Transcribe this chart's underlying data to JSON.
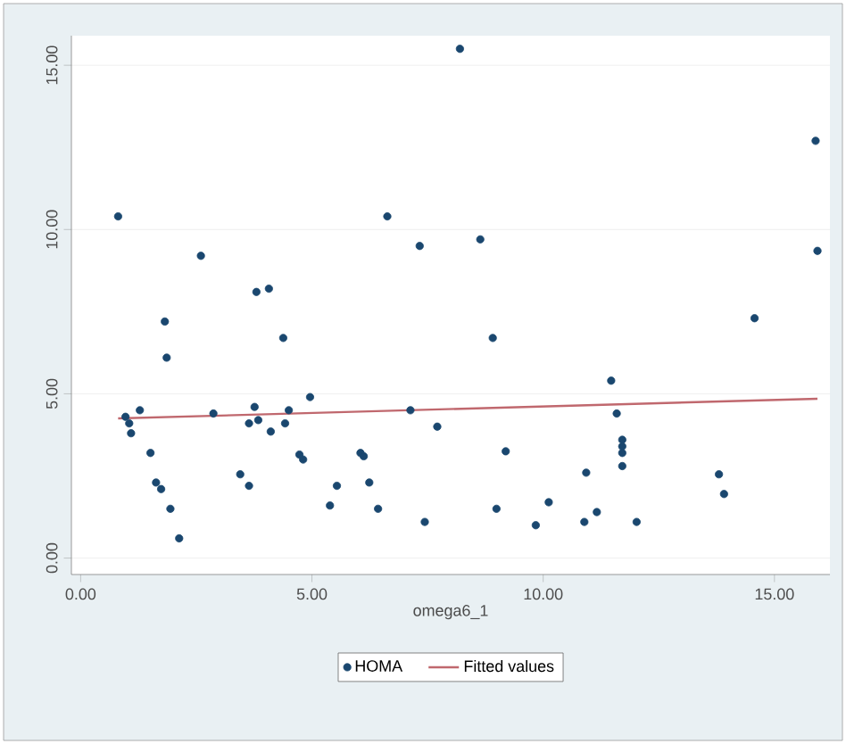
{
  "chart_data": {
    "type": "scatter",
    "xlabel": "omega6_1",
    "xlim": [
      -0.2,
      16.2
    ],
    "ylim": [
      -0.5,
      15.9
    ],
    "xticks": [
      {
        "value": 0,
        "label": "0.00"
      },
      {
        "value": 5,
        "label": "5.00"
      },
      {
        "value": 10,
        "label": "10.00"
      },
      {
        "value": 15,
        "label": "15.00"
      }
    ],
    "yticks": [
      {
        "value": 0,
        "label": "0.00"
      },
      {
        "value": 5,
        "label": "5.00"
      },
      {
        "value": 10,
        "label": "10.00"
      },
      {
        "value": 15,
        "label": "15.00"
      }
    ],
    "grid": "y",
    "legend": "bottom",
    "series": [
      {
        "name": "HOMA",
        "color": "#1a476f",
        "marker": "circle",
        "x": [
          0.81,
          0.97,
          1.05,
          1.09,
          1.28,
          1.51,
          1.63,
          1.74,
          1.82,
          1.86,
          1.94,
          2.13,
          2.6,
          2.87,
          3.45,
          3.64,
          3.64,
          3.76,
          3.8,
          3.84,
          4.07,
          4.11,
          4.38,
          4.42,
          4.5,
          4.73,
          4.81,
          4.96,
          5.39,
          5.54,
          6.05,
          6.12,
          6.24,
          6.43,
          6.63,
          7.13,
          7.33,
          7.44,
          7.71,
          8.2,
          8.64,
          8.91,
          8.99,
          9.19,
          9.84,
          10.12,
          10.89,
          10.93,
          11.16,
          11.47,
          11.59,
          11.71,
          11.71,
          11.71,
          11.71,
          12.02,
          13.8,
          13.91,
          14.57,
          15.89,
          15.93
        ],
        "values": [
          10.4,
          4.3,
          4.1,
          3.8,
          4.5,
          3.2,
          2.3,
          2.1,
          7.2,
          6.1,
          1.5,
          0.6,
          9.2,
          4.4,
          2.55,
          2.2,
          4.1,
          4.6,
          8.1,
          4.2,
          8.2,
          3.85,
          6.7,
          4.1,
          4.5,
          3.15,
          3.0,
          4.9,
          1.6,
          2.2,
          3.2,
          3.1,
          2.3,
          1.5,
          10.4,
          4.5,
          9.5,
          1.1,
          4.0,
          15.5,
          9.7,
          6.7,
          1.5,
          3.25,
          1.0,
          1.7,
          1.1,
          2.6,
          1.4,
          5.4,
          4.4,
          3.6,
          3.4,
          3.2,
          2.8,
          1.1,
          2.55,
          1.95,
          7.3,
          12.7,
          9.35
        ]
      },
      {
        "name": "Fitted values",
        "type": "line",
        "color": "#c0686e",
        "line_style": "solid",
        "x": [
          0.81,
          15.93
        ],
        "values": [
          4.25,
          4.85
        ]
      }
    ]
  }
}
